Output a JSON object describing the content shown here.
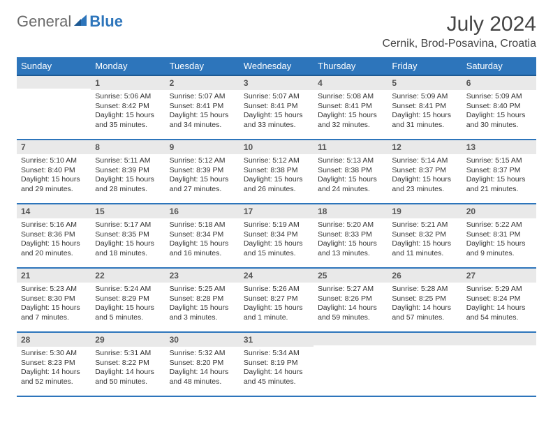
{
  "logo": {
    "text_main": "General",
    "text_sub": "Blue"
  },
  "title": "July 2024",
  "location": "Cernik, Brod-Posavina, Croatia",
  "colors": {
    "header_bg": "#2d75bb",
    "header_border": "#1e5a94",
    "daynum_bg": "#e9e9e9",
    "logo_gray": "#6b6b6b",
    "logo_blue": "#2d75bb"
  },
  "weekdays": [
    "Sunday",
    "Monday",
    "Tuesday",
    "Wednesday",
    "Thursday",
    "Friday",
    "Saturday"
  ],
  "weeks": [
    [
      {
        "n": "",
        "sunrise": "",
        "sunset": "",
        "daylight1": "",
        "daylight2": ""
      },
      {
        "n": "1",
        "sunrise": "Sunrise: 5:06 AM",
        "sunset": "Sunset: 8:42 PM",
        "daylight1": "Daylight: 15 hours",
        "daylight2": "and 35 minutes."
      },
      {
        "n": "2",
        "sunrise": "Sunrise: 5:07 AM",
        "sunset": "Sunset: 8:41 PM",
        "daylight1": "Daylight: 15 hours",
        "daylight2": "and 34 minutes."
      },
      {
        "n": "3",
        "sunrise": "Sunrise: 5:07 AM",
        "sunset": "Sunset: 8:41 PM",
        "daylight1": "Daylight: 15 hours",
        "daylight2": "and 33 minutes."
      },
      {
        "n": "4",
        "sunrise": "Sunrise: 5:08 AM",
        "sunset": "Sunset: 8:41 PM",
        "daylight1": "Daylight: 15 hours",
        "daylight2": "and 32 minutes."
      },
      {
        "n": "5",
        "sunrise": "Sunrise: 5:09 AM",
        "sunset": "Sunset: 8:41 PM",
        "daylight1": "Daylight: 15 hours",
        "daylight2": "and 31 minutes."
      },
      {
        "n": "6",
        "sunrise": "Sunrise: 5:09 AM",
        "sunset": "Sunset: 8:40 PM",
        "daylight1": "Daylight: 15 hours",
        "daylight2": "and 30 minutes."
      }
    ],
    [
      {
        "n": "7",
        "sunrise": "Sunrise: 5:10 AM",
        "sunset": "Sunset: 8:40 PM",
        "daylight1": "Daylight: 15 hours",
        "daylight2": "and 29 minutes."
      },
      {
        "n": "8",
        "sunrise": "Sunrise: 5:11 AM",
        "sunset": "Sunset: 8:39 PM",
        "daylight1": "Daylight: 15 hours",
        "daylight2": "and 28 minutes."
      },
      {
        "n": "9",
        "sunrise": "Sunrise: 5:12 AM",
        "sunset": "Sunset: 8:39 PM",
        "daylight1": "Daylight: 15 hours",
        "daylight2": "and 27 minutes."
      },
      {
        "n": "10",
        "sunrise": "Sunrise: 5:12 AM",
        "sunset": "Sunset: 8:38 PM",
        "daylight1": "Daylight: 15 hours",
        "daylight2": "and 26 minutes."
      },
      {
        "n": "11",
        "sunrise": "Sunrise: 5:13 AM",
        "sunset": "Sunset: 8:38 PM",
        "daylight1": "Daylight: 15 hours",
        "daylight2": "and 24 minutes."
      },
      {
        "n": "12",
        "sunrise": "Sunrise: 5:14 AM",
        "sunset": "Sunset: 8:37 PM",
        "daylight1": "Daylight: 15 hours",
        "daylight2": "and 23 minutes."
      },
      {
        "n": "13",
        "sunrise": "Sunrise: 5:15 AM",
        "sunset": "Sunset: 8:37 PM",
        "daylight1": "Daylight: 15 hours",
        "daylight2": "and 21 minutes."
      }
    ],
    [
      {
        "n": "14",
        "sunrise": "Sunrise: 5:16 AM",
        "sunset": "Sunset: 8:36 PM",
        "daylight1": "Daylight: 15 hours",
        "daylight2": "and 20 minutes."
      },
      {
        "n": "15",
        "sunrise": "Sunrise: 5:17 AM",
        "sunset": "Sunset: 8:35 PM",
        "daylight1": "Daylight: 15 hours",
        "daylight2": "and 18 minutes."
      },
      {
        "n": "16",
        "sunrise": "Sunrise: 5:18 AM",
        "sunset": "Sunset: 8:34 PM",
        "daylight1": "Daylight: 15 hours",
        "daylight2": "and 16 minutes."
      },
      {
        "n": "17",
        "sunrise": "Sunrise: 5:19 AM",
        "sunset": "Sunset: 8:34 PM",
        "daylight1": "Daylight: 15 hours",
        "daylight2": "and 15 minutes."
      },
      {
        "n": "18",
        "sunrise": "Sunrise: 5:20 AM",
        "sunset": "Sunset: 8:33 PM",
        "daylight1": "Daylight: 15 hours",
        "daylight2": "and 13 minutes."
      },
      {
        "n": "19",
        "sunrise": "Sunrise: 5:21 AM",
        "sunset": "Sunset: 8:32 PM",
        "daylight1": "Daylight: 15 hours",
        "daylight2": "and 11 minutes."
      },
      {
        "n": "20",
        "sunrise": "Sunrise: 5:22 AM",
        "sunset": "Sunset: 8:31 PM",
        "daylight1": "Daylight: 15 hours",
        "daylight2": "and 9 minutes."
      }
    ],
    [
      {
        "n": "21",
        "sunrise": "Sunrise: 5:23 AM",
        "sunset": "Sunset: 8:30 PM",
        "daylight1": "Daylight: 15 hours",
        "daylight2": "and 7 minutes."
      },
      {
        "n": "22",
        "sunrise": "Sunrise: 5:24 AM",
        "sunset": "Sunset: 8:29 PM",
        "daylight1": "Daylight: 15 hours",
        "daylight2": "and 5 minutes."
      },
      {
        "n": "23",
        "sunrise": "Sunrise: 5:25 AM",
        "sunset": "Sunset: 8:28 PM",
        "daylight1": "Daylight: 15 hours",
        "daylight2": "and 3 minutes."
      },
      {
        "n": "24",
        "sunrise": "Sunrise: 5:26 AM",
        "sunset": "Sunset: 8:27 PM",
        "daylight1": "Daylight: 15 hours",
        "daylight2": "and 1 minute."
      },
      {
        "n": "25",
        "sunrise": "Sunrise: 5:27 AM",
        "sunset": "Sunset: 8:26 PM",
        "daylight1": "Daylight: 14 hours",
        "daylight2": "and 59 minutes."
      },
      {
        "n": "26",
        "sunrise": "Sunrise: 5:28 AM",
        "sunset": "Sunset: 8:25 PM",
        "daylight1": "Daylight: 14 hours",
        "daylight2": "and 57 minutes."
      },
      {
        "n": "27",
        "sunrise": "Sunrise: 5:29 AM",
        "sunset": "Sunset: 8:24 PM",
        "daylight1": "Daylight: 14 hours",
        "daylight2": "and 54 minutes."
      }
    ],
    [
      {
        "n": "28",
        "sunrise": "Sunrise: 5:30 AM",
        "sunset": "Sunset: 8:23 PM",
        "daylight1": "Daylight: 14 hours",
        "daylight2": "and 52 minutes."
      },
      {
        "n": "29",
        "sunrise": "Sunrise: 5:31 AM",
        "sunset": "Sunset: 8:22 PM",
        "daylight1": "Daylight: 14 hours",
        "daylight2": "and 50 minutes."
      },
      {
        "n": "30",
        "sunrise": "Sunrise: 5:32 AM",
        "sunset": "Sunset: 8:20 PM",
        "daylight1": "Daylight: 14 hours",
        "daylight2": "and 48 minutes."
      },
      {
        "n": "31",
        "sunrise": "Sunrise: 5:34 AM",
        "sunset": "Sunset: 8:19 PM",
        "daylight1": "Daylight: 14 hours",
        "daylight2": "and 45 minutes."
      },
      {
        "n": "",
        "sunrise": "",
        "sunset": "",
        "daylight1": "",
        "daylight2": ""
      },
      {
        "n": "",
        "sunrise": "",
        "sunset": "",
        "daylight1": "",
        "daylight2": ""
      },
      {
        "n": "",
        "sunrise": "",
        "sunset": "",
        "daylight1": "",
        "daylight2": ""
      }
    ]
  ]
}
